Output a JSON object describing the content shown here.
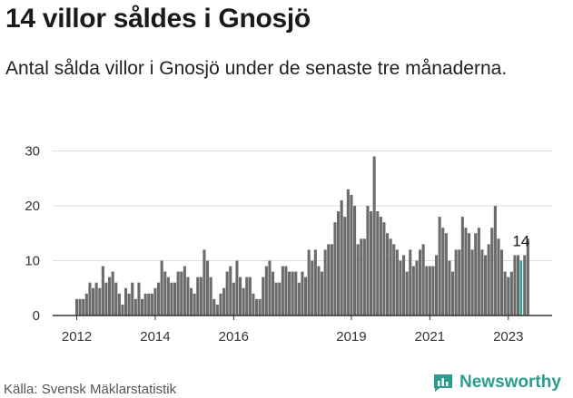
{
  "title": "14 villor såldes i Gnosjö",
  "subtitle": "Antal sålda villor i Gnosjö under de senaste tre månaderna.",
  "source": "Källa: Svensk Mäklarstatistik",
  "brand": "Newsworthy",
  "colors": {
    "bar": "#6b6b6b",
    "highlight": "#26a69a",
    "grid": "#dddddd",
    "brand": "#2a9d8f"
  },
  "chart_data": {
    "type": "bar",
    "title": "14 villor såldes i Gnosjö",
    "xlabel": "",
    "ylabel": "",
    "ylim": [
      0,
      30
    ],
    "yticks": [
      0,
      10,
      20,
      30
    ],
    "grid": true,
    "start": "2012-01",
    "xtick_labels": [
      "2012",
      "2014",
      "2016",
      "2019",
      "2021",
      "2023"
    ],
    "xtick_indices": [
      0,
      24,
      48,
      84,
      108,
      132
    ],
    "values": [
      3,
      3,
      3,
      4,
      6,
      5,
      6,
      5,
      9,
      6,
      7,
      8,
      6,
      4,
      2,
      5,
      4,
      6,
      3,
      6,
      3,
      4,
      4,
      4,
      5,
      6,
      10,
      8,
      7,
      6,
      6,
      8,
      8,
      9,
      7,
      5,
      4,
      7,
      7,
      12,
      10,
      7,
      3,
      2,
      4,
      5,
      8,
      9,
      6,
      10,
      7,
      5,
      7,
      7,
      4,
      3,
      3,
      7,
      9,
      10,
      8,
      6,
      6,
      9,
      9,
      8,
      8,
      8,
      6,
      8,
      7,
      12,
      10,
      12,
      9,
      8,
      12,
      13,
      13,
      17,
      19,
      21,
      18,
      23,
      22,
      20,
      13,
      14,
      14,
      20,
      19,
      29,
      19,
      18,
      17,
      15,
      14,
      13,
      12,
      10,
      11,
      8,
      12,
      9,
      10,
      12,
      13,
      9,
      9,
      9,
      11,
      18,
      16,
      15,
      10,
      8,
      12,
      12,
      18,
      16,
      15,
      12,
      15,
      16,
      12,
      11,
      13,
      16,
      20,
      14,
      12,
      8,
      7,
      8,
      11,
      11,
      10,
      11,
      14
    ],
    "highlight_index": 136,
    "highlight_label": "14"
  }
}
